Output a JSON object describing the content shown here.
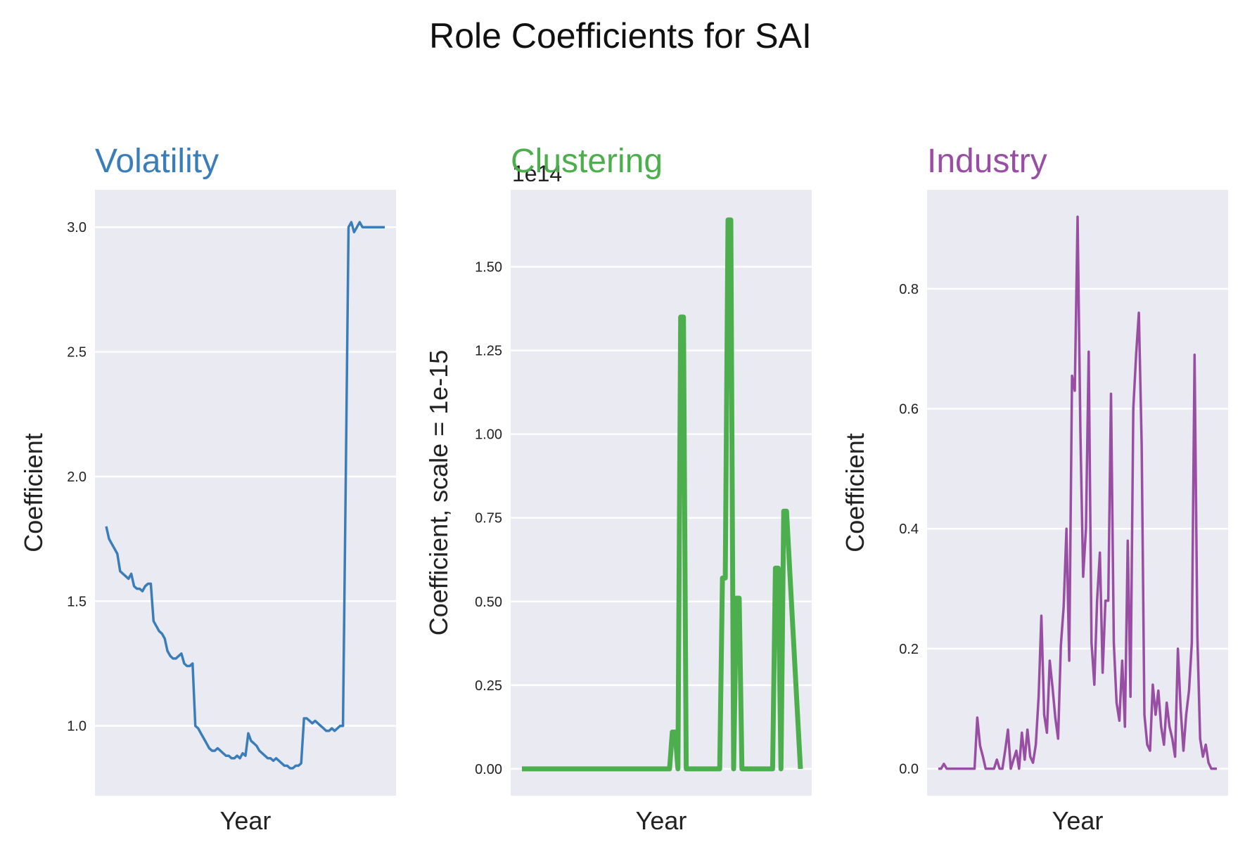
{
  "title": "Role Coefficients for SAI",
  "chart_data": [
    {
      "type": "line",
      "title": "Volatility",
      "title_color": "#3a7db8",
      "color": "#3a7db8",
      "xlabel": "Year",
      "ylabel": "Coefficient",
      "ylim": [
        0.72,
        3.15
      ],
      "yticks": [
        1.0,
        1.5,
        2.0,
        2.5,
        3.0
      ],
      "ytick_labels": [
        "1.0",
        "1.5",
        "2.0",
        "2.5",
        "3.0"
      ],
      "grid": true,
      "x": [
        0,
        1,
        2,
        3,
        4,
        5,
        6,
        7,
        8,
        9,
        10,
        11,
        12,
        13,
        14,
        15,
        16,
        17,
        18,
        19,
        20,
        21,
        22,
        23,
        24,
        25,
        26,
        27,
        28,
        29,
        30,
        31,
        32,
        33,
        34,
        35,
        36,
        37,
        38,
        39,
        40,
        41,
        42,
        43,
        44,
        45,
        46,
        47,
        48,
        49,
        50,
        51,
        52,
        53,
        54,
        55,
        56,
        57,
        58,
        59,
        60,
        61,
        62,
        63,
        64,
        65,
        66,
        67,
        68,
        69,
        70,
        71,
        72,
        73,
        74,
        75,
        76,
        77,
        78,
        79,
        80,
        81,
        82,
        83,
        84,
        85,
        86,
        87,
        88,
        89,
        90,
        91,
        92,
        93,
        94,
        95,
        96,
        97,
        98,
        99,
        100
      ],
      "values": [
        1.8,
        1.75,
        1.73,
        1.71,
        1.69,
        1.62,
        1.61,
        1.6,
        1.59,
        1.61,
        1.56,
        1.55,
        1.55,
        1.54,
        1.56,
        1.57,
        1.57,
        1.42,
        1.4,
        1.38,
        1.37,
        1.35,
        1.3,
        1.28,
        1.27,
        1.27,
        1.28,
        1.29,
        1.25,
        1.24,
        1.24,
        1.25,
        1.0,
        0.99,
        0.97,
        0.95,
        0.93,
        0.91,
        0.9,
        0.9,
        0.91,
        0.9,
        0.89,
        0.88,
        0.88,
        0.87,
        0.87,
        0.88,
        0.87,
        0.89,
        0.88,
        0.97,
        0.94,
        0.93,
        0.92,
        0.9,
        0.89,
        0.88,
        0.87,
        0.87,
        0.86,
        0.87,
        0.86,
        0.85,
        0.84,
        0.84,
        0.83,
        0.83,
        0.84,
        0.84,
        0.85,
        1.03,
        1.03,
        1.02,
        1.01,
        1.02,
        1.01,
        1.0,
        0.99,
        0.98,
        0.98,
        0.99,
        0.98,
        0.99,
        1.0,
        1.0,
        2.0,
        3.0,
        3.02,
        2.98,
        3.0,
        3.02,
        3.0,
        3.0,
        3.0,
        3.0,
        3.0,
        3.0,
        3.0,
        3.0,
        3.0
      ]
    },
    {
      "type": "line",
      "title": "Clustering",
      "title_color": "#4cae4c",
      "color": "#4cae4c",
      "xlabel": "Year",
      "ylabel": "Coefficient, scale = 1e-15",
      "offset_text": "1e14",
      "ylim": [
        -0.08,
        1.73
      ],
      "yticks": [
        0.0,
        0.25,
        0.5,
        0.75,
        1.0,
        1.25,
        1.5
      ],
      "ytick_labels": [
        "0.00",
        "0.25",
        "0.50",
        "0.75",
        "1.00",
        "1.25",
        "1.50"
      ],
      "grid": true,
      "x": [
        0,
        53,
        54,
        55,
        56,
        57,
        58,
        59,
        71,
        72,
        73,
        74,
        75,
        76,
        77,
        78,
        79,
        80,
        81,
        90,
        91,
        92,
        93,
        94,
        95,
        100
      ],
      "values": [
        0,
        0,
        0.11,
        0.11,
        0,
        1.35,
        1.35,
        0,
        0,
        0.57,
        0.57,
        1.64,
        1.64,
        0,
        0.51,
        0.51,
        0,
        0,
        0,
        0,
        0.6,
        0.6,
        0,
        0.77,
        0.77,
        0
      ]
    },
    {
      "type": "line",
      "title": "Industry",
      "title_color": "#984ea3",
      "color": "#984ea3",
      "xlabel": "Year",
      "ylabel": "Coefficient",
      "ylim": [
        -0.045,
        0.965
      ],
      "yticks": [
        0.0,
        0.2,
        0.4,
        0.6,
        0.8
      ],
      "ytick_labels": [
        "0.0",
        "0.2",
        "0.4",
        "0.6",
        "0.8"
      ],
      "grid": true,
      "x": [
        0,
        1,
        2,
        3,
        4,
        5,
        6,
        7,
        8,
        9,
        10,
        11,
        12,
        13,
        14,
        15,
        16,
        17,
        18,
        19,
        20,
        21,
        22,
        23,
        24,
        25,
        26,
        27,
        28,
        29,
        30,
        31,
        32,
        33,
        34,
        35,
        36,
        37,
        38,
        39,
        40,
        41,
        42,
        43,
        44,
        45,
        46,
        47,
        48,
        49,
        50,
        51,
        52,
        53,
        54,
        55,
        56,
        57,
        58,
        59,
        60,
        61,
        62,
        63,
        64,
        65,
        66,
        67,
        68,
        69,
        70,
        71,
        72,
        73,
        74,
        75,
        76,
        77,
        78,
        79,
        80,
        81,
        82,
        83,
        84,
        85,
        86,
        87,
        88,
        89,
        90,
        91,
        92,
        93,
        94,
        95,
        96,
        97,
        98,
        99,
        100
      ],
      "values": [
        0,
        0,
        0.008,
        0,
        0,
        0,
        0,
        0,
        0,
        0,
        0,
        0,
        0,
        0,
        0.085,
        0.038,
        0.02,
        0,
        0,
        0,
        0,
        0.015,
        0,
        0,
        0.03,
        0.065,
        0,
        0.015,
        0.03,
        0,
        0.06,
        0.015,
        0.065,
        0.02,
        0.01,
        0.04,
        0.12,
        0.255,
        0.09,
        0.06,
        0.18,
        0.135,
        0.085,
        0.05,
        0.205,
        0.27,
        0.4,
        0.18,
        0.655,
        0.63,
        0.92,
        0.56,
        0.32,
        0.4,
        0.695,
        0.21,
        0.14,
        0.28,
        0.36,
        0.16,
        0.28,
        0.28,
        0.625,
        0.21,
        0.11,
        0.08,
        0.18,
        0.07,
        0.38,
        0.12,
        0.6,
        0.69,
        0.76,
        0.54,
        0.09,
        0.04,
        0.03,
        0.14,
        0.09,
        0.13,
        0.07,
        0.04,
        0.11,
        0.07,
        0.05,
        0.02,
        0.2,
        0.1,
        0.03,
        0.09,
        0.13,
        0.21,
        0.69,
        0.22,
        0.05,
        0.02,
        0.04,
        0.01,
        0,
        0,
        0
      ]
    }
  ]
}
